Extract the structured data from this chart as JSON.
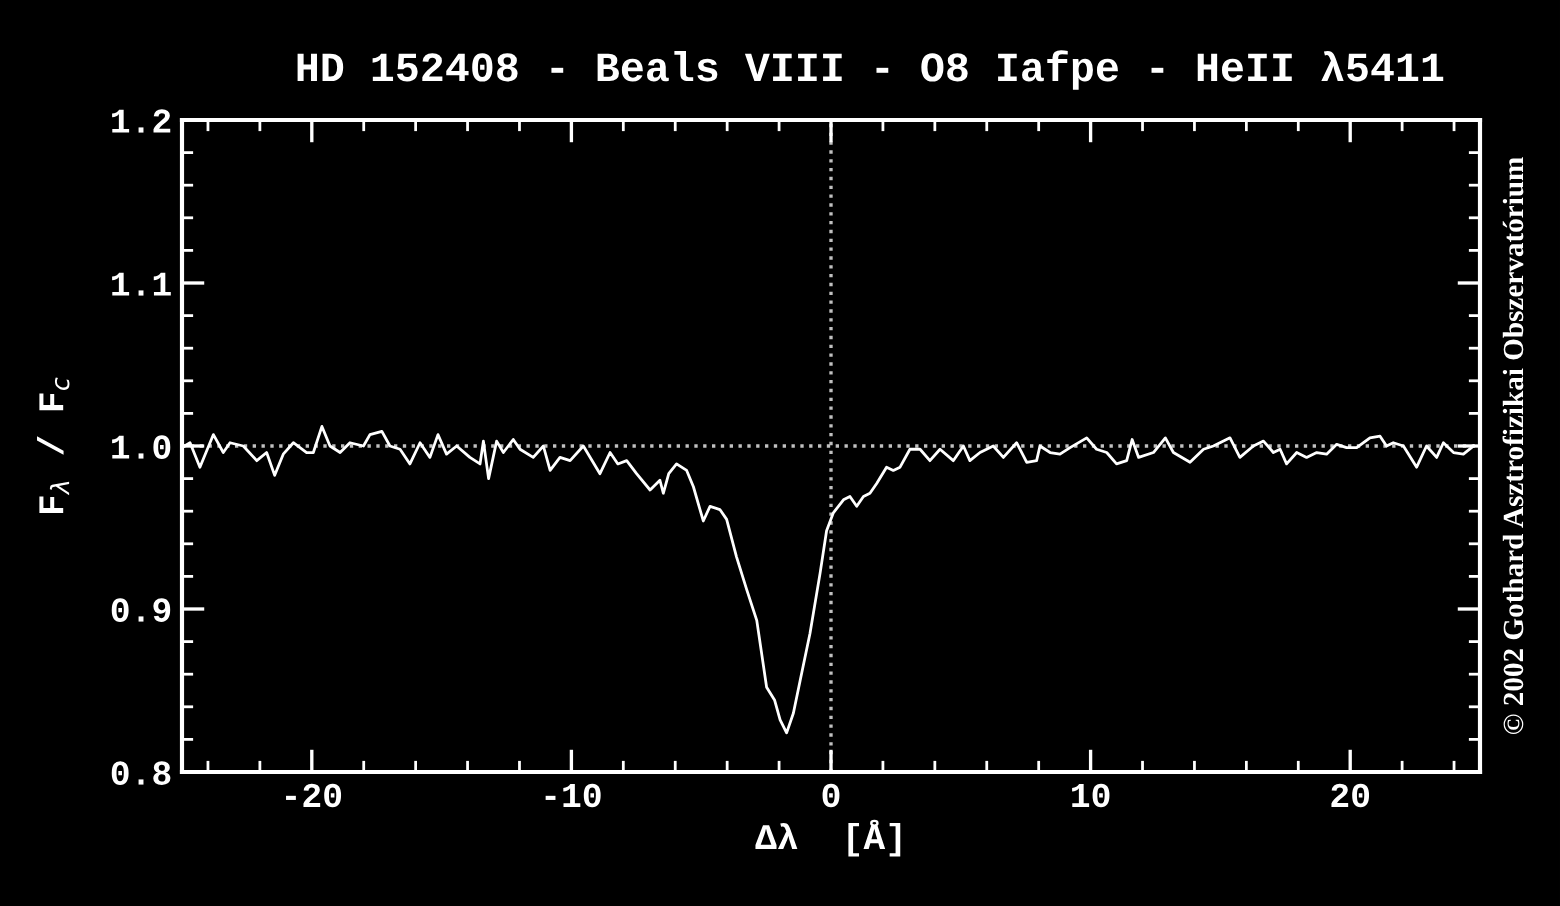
{
  "chart_data": {
    "type": "line",
    "title": "HD 152408 - Beals VIII - O8 Iafpe - HeII λ5411",
    "xlabel": "Δλ  [Å]",
    "ylabel": "F$_{λ}$ / F$_{c}$",
    "xlim": [
      -25,
      25
    ],
    "xticks": [
      -20,
      -10,
      0,
      10,
      20
    ],
    "ylim": [
      0.8,
      1.2
    ],
    "yticks": [
      0.8,
      0.9,
      {
        "value": 1.0,
        "label": "1.0"
      },
      1.1,
      1.2
    ],
    "grid": false,
    "legend": false,
    "marker": "none",
    "line_style": "solid",
    "ref_lines": [
      {
        "axis": "x",
        "value": 0,
        "color": "#c0c0c0",
        "line_style": "dotted"
      },
      {
        "axis": "y",
        "value": 1.0,
        "color": "#c0c0c0",
        "line_style": "dotted"
      }
    ],
    "annotations": [
      "© 2002 Gothard Asztrofizikai Obszervatórium"
    ],
    "series": [
      {
        "color": "#ffffff",
        "x": [
          -24.9,
          -24.69,
          -24.31,
          -23.79,
          -23.41,
          -23.15,
          -22.64,
          -22.12,
          -21.74,
          -21.43,
          -21.1,
          -20.71,
          -20.2,
          -19.94,
          -19.61,
          -19.3,
          -18.91,
          -18.53,
          -18.01,
          -17.76,
          -17.3,
          -16.99,
          -16.6,
          -16.22,
          -15.83,
          -15.45,
          -15.14,
          -14.81,
          -14.42,
          -13.91,
          -13.52,
          -13.39,
          -13.19,
          -12.88,
          -12.62,
          -12.24,
          -11.98,
          -11.47,
          -11.08,
          -10.82,
          -10.44,
          -10.05,
          -9.54,
          -8.9,
          -8.51,
          -8.21,
          -7.87,
          -7.49,
          -6.97,
          -6.59,
          -6.46,
          -6.25,
          -5.95,
          -5.56,
          -5.3,
          -4.92,
          -4.66,
          -4.28,
          -4.02,
          -3.64,
          -3.25,
          -2.86,
          -2.48,
          -2.17,
          -1.96,
          -1.71,
          -1.45,
          -1.19,
          -0.81,
          -0.42,
          -0.17,
          0.09,
          0.48,
          0.73,
          0.99,
          1.25,
          1.5,
          1.76,
          2.14,
          2.4,
          2.66,
          3.04,
          3.43,
          3.81,
          4.2,
          4.71,
          5.1,
          5.35,
          5.74,
          6.25,
          6.64,
          7.15,
          7.54,
          7.92,
          8.05,
          8.44,
          8.82,
          9.21,
          9.85,
          10.23,
          10.62,
          11.0,
          11.39,
          11.6,
          11.85,
          12.42,
          12.88,
          13.19,
          13.83,
          14.35,
          14.73,
          15.37,
          15.75,
          16.27,
          16.66,
          17.04,
          17.3,
          17.55,
          17.94,
          18.32,
          18.71,
          19.09,
          19.48,
          19.86,
          20.25,
          20.76,
          21.15,
          21.4,
          21.66,
          22.05,
          22.56,
          22.94,
          23.33,
          23.59,
          23.98,
          24.36,
          24.75
        ],
        "values": [
          1.0,
          1.002,
          0.987,
          1.007,
          0.996,
          1.002,
          1.0,
          0.991,
          0.996,
          0.982,
          0.995,
          1.002,
          0.996,
          0.996,
          1.012,
          1.0,
          0.996,
          1.002,
          1.0,
          1.007,
          1.009,
          1.0,
          0.998,
          0.989,
          1.002,
          0.993,
          1.007,
          0.995,
          1.0,
          0.993,
          0.989,
          1.003,
          0.98,
          1.003,
          0.996,
          1.004,
          0.998,
          0.993,
          1.0,
          0.985,
          0.993,
          0.991,
          1.0,
          0.983,
          0.996,
          0.989,
          0.991,
          0.983,
          0.973,
          0.979,
          0.971,
          0.983,
          0.989,
          0.985,
          0.975,
          0.954,
          0.963,
          0.961,
          0.955,
          0.932,
          0.912,
          0.893,
          0.852,
          0.844,
          0.832,
          0.824,
          0.836,
          0.856,
          0.885,
          0.922,
          0.948,
          0.959,
          0.967,
          0.969,
          0.963,
          0.969,
          0.971,
          0.977,
          0.987,
          0.985,
          0.987,
          0.998,
          0.998,
          0.991,
          0.998,
          0.991,
          1.0,
          0.991,
          0.996,
          1.0,
          0.993,
          1.002,
          0.99,
          0.991,
          1.0,
          0.996,
          0.995,
          0.999,
          1.005,
          0.998,
          0.996,
          0.989,
          0.991,
          1.004,
          0.993,
          0.996,
          1.005,
          0.996,
          0.99,
          0.998,
          1.0,
          1.005,
          0.993,
          1.0,
          1.003,
          0.996,
          0.998,
          0.989,
          0.996,
          0.993,
          0.996,
          0.995,
          1.001,
          0.999,
          0.999,
          1.005,
          1.006,
          1.0,
          1.002,
          1.0,
          0.987,
          1.0,
          0.993,
          1.002,
          0.996,
          0.995,
          1.0
        ]
      }
    ]
  }
}
